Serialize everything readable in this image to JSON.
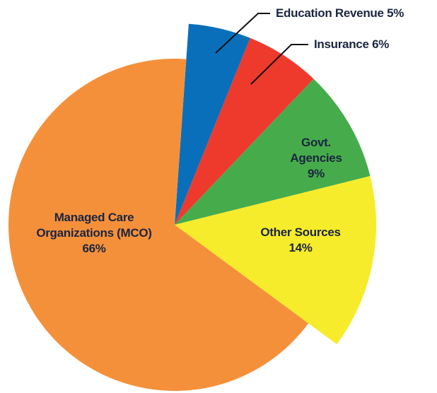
{
  "chart_data": {
    "type": "pie",
    "categories": [
      "Education Revenue",
      "Insurance",
      "Govt. Agencies",
      "Other Sources",
      "Managed Care Organizations (MCO)"
    ],
    "values": [
      5,
      6,
      9,
      14,
      66
    ],
    "value_labels": [
      "5%",
      "6%",
      "9%",
      "14%",
      "66%"
    ],
    "colors": [
      "#0a6fba",
      "#ee3a2c",
      "#46ac4b",
      "#f7ec2b",
      "#f5903a"
    ]
  }
}
